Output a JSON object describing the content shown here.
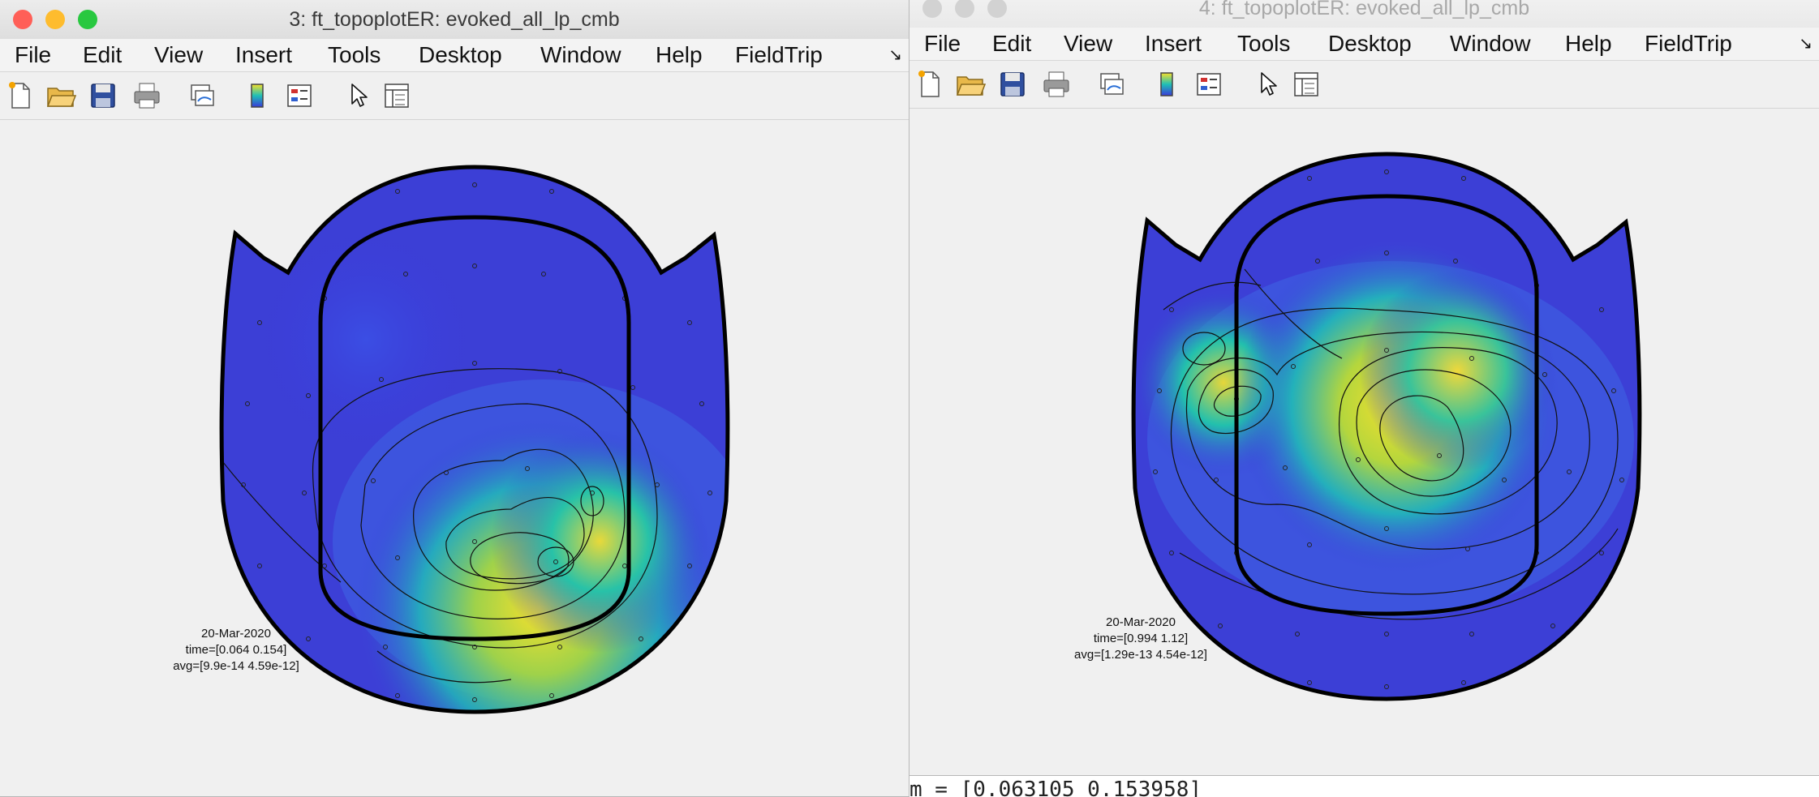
{
  "colors": {
    "close": "#ff5f57",
    "minimize": "#febc2e",
    "zoom": "#28c840",
    "inactive": "#d2d2d2",
    "map_low": "#3a3ad9",
    "map_mid": "#1fbfb6",
    "map_high": "#f7e02b",
    "outline": "#000000"
  },
  "menu_items": [
    "File",
    "Edit",
    "View",
    "Insert",
    "Tools",
    "Desktop",
    "Window",
    "Help",
    "FieldTrip"
  ],
  "menu_overflow": "↘",
  "toolbar_icons": [
    "new-file-icon",
    "open-folder-icon",
    "save-icon",
    "print-icon",
    "link-plot-icon",
    "colorbar-icon",
    "legend-icon",
    "pointer-icon",
    "property-inspector-icon"
  ],
  "left_window": {
    "title": "3: ft_topoplotER: evoked_all_lp_cmb",
    "annotation": {
      "date": "20-Mar-2020",
      "time": "time=[0.064 0.154]",
      "avg": "avg=[9.9e-14 4.59e-12]"
    }
  },
  "right_window": {
    "title": "4: ft_topoplotER: evoked_all_lp_cmb",
    "annotation": {
      "date": "20-Mar-2020",
      "time": "time=[0.994 1.12]",
      "avg": "avg=[1.29e-13 4.54e-12]"
    }
  },
  "console": {
    "text": "m = [0.063105 0.153958]"
  }
}
